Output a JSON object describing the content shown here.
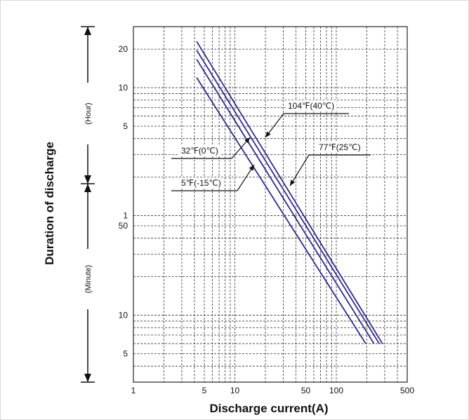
{
  "chart_data": {
    "type": "line",
    "title": "",
    "xlabel": "Discharge current(A)",
    "ylabel": "Duration of discharge",
    "x_scale": "log",
    "y_scale": "log",
    "xlim": [
      1,
      500
    ],
    "ylim_minutes": [
      3,
      1800
    ],
    "grid": true,
    "x_ticks": [
      "1",
      "5",
      "10",
      "50",
      "100",
      "500"
    ],
    "y_ticks_hour": [
      "20",
      "10",
      "5",
      "1"
    ],
    "y_ticks_minute": [
      "50",
      "10",
      "5"
    ],
    "y_unit_hour": "(Hour)",
    "y_unit_minute": "(Minute)",
    "series": [
      {
        "name": "5℉(-15℃)",
        "color": "#2e2a8a",
        "x": [
          4.2,
          195
        ],
        "y": [
          720,
          6.0
        ]
      },
      {
        "name": "32℉(0℃)",
        "color": "#2e2a8a",
        "x": [
          4.2,
          235
        ],
        "y": [
          1000,
          6.0
        ]
      },
      {
        "name": "77℉(25℃)",
        "color": "#2e2a8a",
        "x": [
          4.2,
          265
        ],
        "y": [
          1180,
          6.0
        ]
      },
      {
        "name": "104℉(40℃)",
        "color": "#2e2a8a",
        "x": [
          4.2,
          285
        ],
        "y": [
          1380,
          6.0
        ]
      }
    ],
    "annotations": [
      {
        "label": "104℉(40℃)",
        "points_to": "104℉(40℃)"
      },
      {
        "label": "32℉(0℃)",
        "points_to": "32℉(0℃)"
      },
      {
        "label": "77℉(25℃)",
        "points_to": "77℉(25℃)"
      },
      {
        "label": "5℉(-15℃)",
        "points_to": "5℉(-15℃)"
      }
    ]
  }
}
